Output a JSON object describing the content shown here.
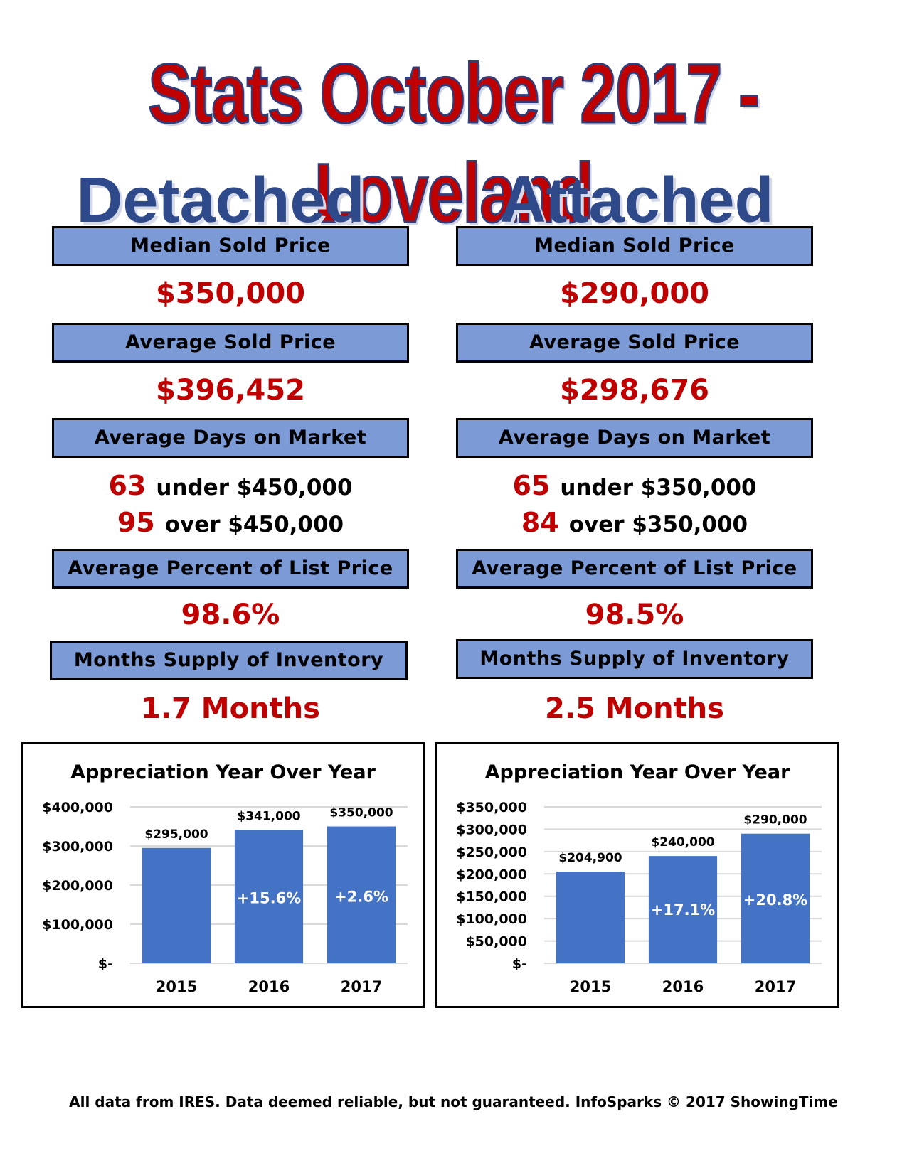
{
  "title": "Stats October 2017 - Loveland",
  "detached": {
    "heading": "Detached",
    "median_label": "Median Sold Price",
    "median_value": "$350,000",
    "average_label": "Average Sold Price",
    "average_value": "$396,452",
    "dom_label": "Average Days on Market",
    "dom_under_num": "63",
    "dom_under_text": "under $450,000",
    "dom_over_num": "95",
    "dom_over_text": "over $450,000",
    "pct_label": "Average Percent of List Price",
    "pct_value": "98.6%",
    "supply_label": "Months Supply of Inventory",
    "supply_value": "1.7 Months"
  },
  "attached": {
    "heading": "Attached",
    "median_label": "Median Sold Price",
    "median_value": "$290,000",
    "average_label": "Average Sold Price",
    "average_value": "$298,676",
    "dom_label": "Average Days on Market",
    "dom_under_num": "65",
    "dom_under_text": "under $350,000",
    "dom_over_num": "84",
    "dom_over_text": "over $350,000",
    "pct_label": "Average Percent of List Price",
    "pct_value": "98.5%",
    "supply_label": "Months Supply of Inventory",
    "supply_value": "2.5 Months"
  },
  "colors": {
    "bar": "#4472c4",
    "accent_red": "#c00000",
    "box_fill": "#7b9ad6",
    "heading_blue": "#2f4a8a"
  },
  "chart_data": [
    {
      "type": "bar",
      "title": "Appreciation Year Over Year",
      "categories": [
        "2015",
        "2016",
        "2017"
      ],
      "values": [
        295000,
        341000,
        350000
      ],
      "value_labels": [
        "$295,000",
        "$341,000",
        "$350,000"
      ],
      "change_labels": [
        "",
        "+15.6%",
        "+2.6%"
      ],
      "yticks": [
        0,
        100000,
        200000,
        300000,
        400000
      ],
      "ytick_labels": [
        "$-",
        "$100,000",
        "$200,000",
        "$300,000",
        "$400,000"
      ],
      "ylim": [
        0,
        400000
      ],
      "grid": true
    },
    {
      "type": "bar",
      "title": "Appreciation Year Over Year",
      "categories": [
        "2015",
        "2016",
        "2017"
      ],
      "values": [
        204900,
        240000,
        290000
      ],
      "value_labels": [
        "$204,900",
        "$240,000",
        "$290,000"
      ],
      "change_labels": [
        "",
        "+17.1%",
        "+20.8%"
      ],
      "yticks": [
        0,
        50000,
        100000,
        150000,
        200000,
        250000,
        300000,
        350000
      ],
      "ytick_labels": [
        "$-",
        "$50,000",
        "$100,000",
        "$150,000",
        "$200,000",
        "$250,000",
        "$300,000",
        "$350,000"
      ],
      "ylim": [
        0,
        350000
      ],
      "grid": true
    }
  ],
  "footer": "All data from IRES. Data deemed reliable, but not guaranteed. InfoSparks © 2017 ShowingTime"
}
